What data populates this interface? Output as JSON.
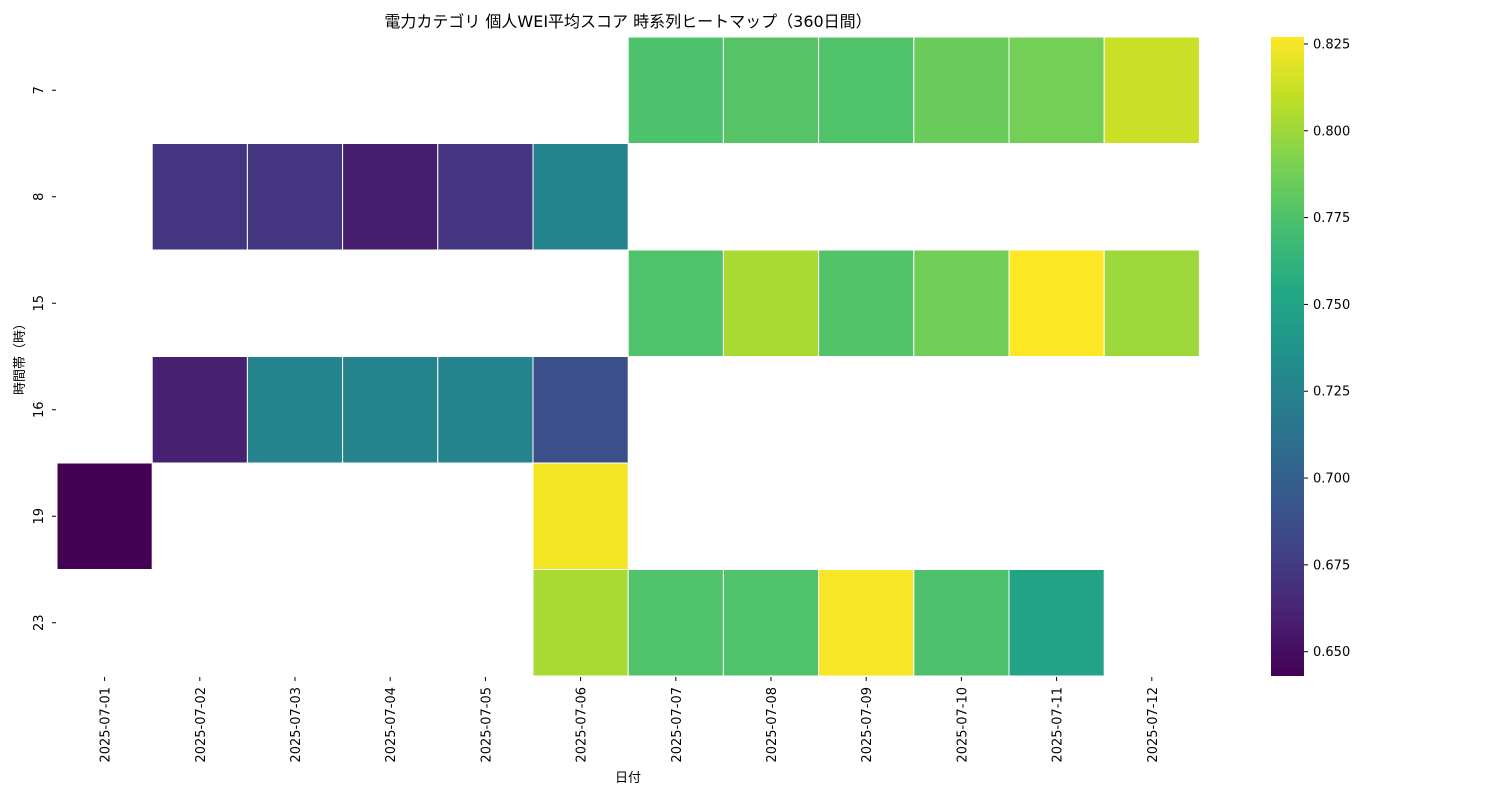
{
  "chart_data": {
    "type": "heatmap",
    "title": "電力カテゴリ 個人WEI平均スコア 時系列ヒートマップ（360日間）",
    "xlabel": "日付",
    "ylabel": "時間帯（時）",
    "x_categories": [
      "2025-07-01",
      "2025-07-02",
      "2025-07-03",
      "2025-07-04",
      "2025-07-05",
      "2025-07-06",
      "2025-07-07",
      "2025-07-08",
      "2025-07-09",
      "2025-07-10",
      "2025-07-11",
      "2025-07-12"
    ],
    "y_categories": [
      "7",
      "8",
      "15",
      "16",
      "19",
      "23"
    ],
    "values": [
      [
        null,
        null,
        null,
        null,
        null,
        null,
        0.775,
        0.778,
        0.776,
        0.785,
        0.788,
        0.812
      ],
      [
        null,
        0.672,
        0.672,
        0.658,
        0.672,
        0.725,
        null,
        null,
        null,
        null,
        null,
        null
      ],
      [
        null,
        null,
        null,
        null,
        null,
        null,
        0.776,
        0.803,
        0.777,
        0.787,
        0.827,
        0.8
      ],
      [
        null,
        0.66,
        0.725,
        0.725,
        0.725,
        0.688,
        null,
        null,
        null,
        null,
        null,
        null
      ],
      [
        0.643,
        null,
        null,
        null,
        null,
        0.824,
        null,
        null,
        null,
        null,
        null,
        null
      ],
      [
        null,
        null,
        null,
        null,
        null,
        0.803,
        0.776,
        0.776,
        0.825,
        0.775,
        0.75,
        null
      ]
    ],
    "colormap": "viridis",
    "vmin": 0.643,
    "vmax": 0.827,
    "colorbar_ticks": [
      "0.650",
      "0.675",
      "0.700",
      "0.725",
      "0.750",
      "0.775",
      "0.800",
      "0.825"
    ],
    "colorbar_tick_values": [
      0.65,
      0.675,
      0.7,
      0.725,
      0.75,
      0.775,
      0.8,
      0.825
    ],
    "missing_color": "#ffffff",
    "cell_border_color": "#ffffff"
  }
}
